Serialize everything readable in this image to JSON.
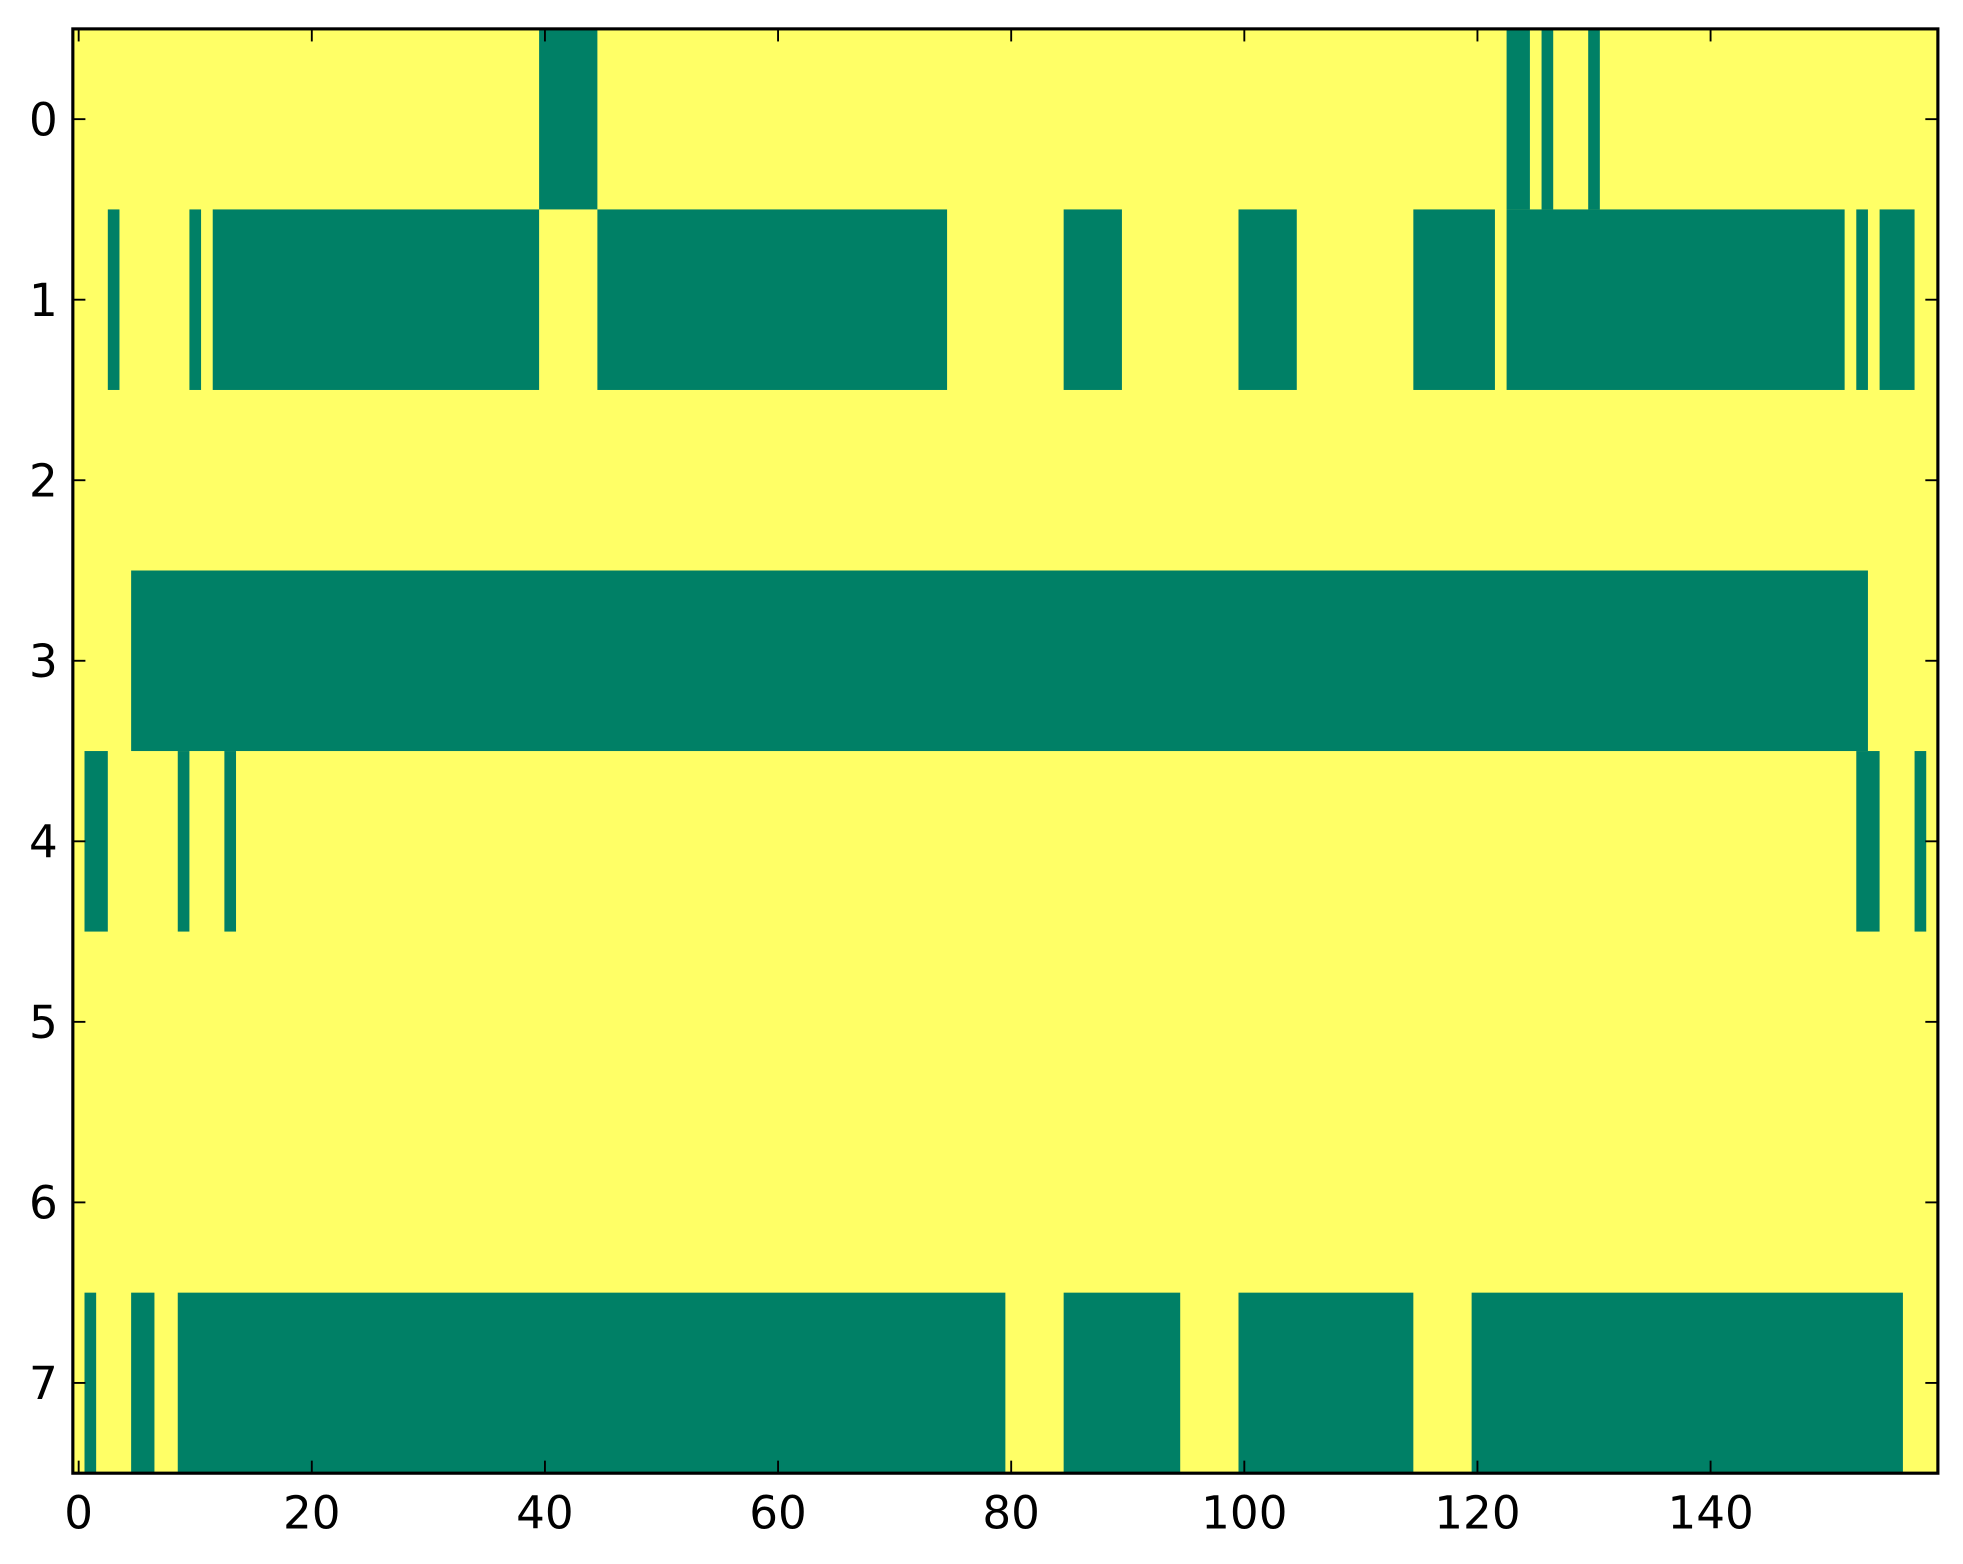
{
  "chart_data": {
    "type": "heatmap",
    "background": "#ffff66",
    "color": "#008066",
    "rows": [
      {
        "row": 0,
        "spans": [
          [
            39.5,
            44.5
          ],
          [
            122.5,
            124.5
          ],
          [
            125.5,
            126.5
          ],
          [
            129.5,
            130.5
          ]
        ]
      },
      {
        "row": 1,
        "spans": [
          [
            2.5,
            3.5
          ],
          [
            9.5,
            10.5
          ],
          [
            11.5,
            39.5
          ],
          [
            44.5,
            74.5
          ],
          [
            84.5,
            89.5
          ],
          [
            99.5,
            104.5
          ],
          [
            114.5,
            121.5
          ],
          [
            122.5,
            151.5
          ],
          [
            152.5,
            153.5
          ],
          [
            154.5,
            157.5
          ]
        ]
      },
      {
        "row": 3,
        "spans": [
          [
            4.5,
            153.5
          ]
        ]
      },
      {
        "row": 4,
        "spans": [
          [
            0.5,
            2.5
          ],
          [
            8.5,
            9.5
          ],
          [
            12.5,
            13.5
          ],
          [
            152.5,
            154.5
          ],
          [
            157.5,
            158.5
          ]
        ]
      },
      {
        "row": 7,
        "spans": [
          [
            0.5,
            1.5
          ],
          [
            4.5,
            6.5
          ],
          [
            8.5,
            79.5
          ],
          [
            84.5,
            94.5
          ],
          [
            99.5,
            114.5
          ],
          [
            119.5,
            156.5
          ]
        ]
      }
    ],
    "xlim": [
      -0.5,
      159.5
    ],
    "ylim": [
      7.5,
      -0.5
    ],
    "xticks": [
      0,
      20,
      40,
      60,
      80,
      100,
      120,
      140
    ],
    "yticks": [
      0,
      1,
      2,
      3,
      4,
      5,
      6,
      7
    ]
  }
}
